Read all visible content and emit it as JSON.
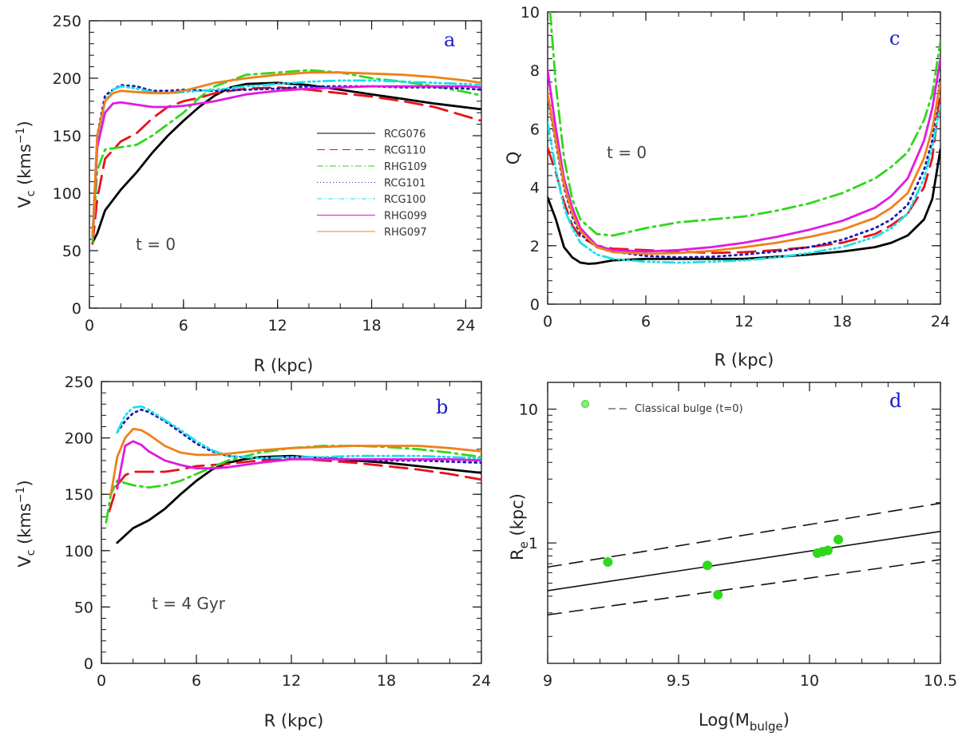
{
  "colors": {
    "RCG076": "#000000",
    "RCG110": "#e8111a",
    "RHG109": "#2ed81a",
    "RCG101": "#1a1ab0",
    "RCG100": "#18e0e8",
    "RHG099": "#e01ae0",
    "RHG097": "#f0801a"
  },
  "chart_data": [
    {
      "id": "a",
      "type": "line",
      "panel_label": "a",
      "annotation": "t = 0",
      "xlabel": "R (kpc)",
      "ylabel": "V_c (kms^-1)",
      "ylabel_main": "V",
      "ylabel_sub": "c",
      "ylabel_rest": " (kms",
      "ylabel_sup": "−1",
      "ylabel_end": ")",
      "xlim": [
        0,
        25
      ],
      "ylim": [
        0,
        250
      ],
      "xticks": [
        0,
        6,
        12,
        18,
        24
      ],
      "yticks": [
        0,
        50,
        100,
        150,
        200,
        250
      ],
      "legend": [
        "RCG076",
        "RCG110",
        "RHG109",
        "RCG101",
        "RCG100",
        "RHG099",
        "RHG097"
      ],
      "series": [
        {
          "name": "RCG076",
          "x": [
            0.2,
            0.5,
            1,
            2,
            3,
            4,
            5,
            6,
            7,
            8,
            9,
            10,
            12,
            14,
            16,
            18,
            20,
            22,
            25
          ],
          "y": [
            57,
            65,
            85,
            103,
            118,
            135,
            150,
            163,
            175,
            185,
            192,
            195,
            196,
            194,
            190,
            186,
            182,
            178,
            173
          ]
        },
        {
          "name": "RCG110",
          "x": [
            0.2,
            0.5,
            1,
            2,
            3,
            4,
            5,
            6,
            7,
            8,
            10,
            12,
            14,
            16,
            18,
            20,
            22,
            25
          ],
          "y": [
            56,
            95,
            130,
            145,
            152,
            165,
            175,
            180,
            183,
            187,
            191,
            192,
            190,
            187,
            184,
            180,
            175,
            163
          ]
        },
        {
          "name": "RHG109",
          "x": [
            0.2,
            0.5,
            1,
            2,
            3,
            4,
            5,
            6,
            7,
            8,
            10,
            12,
            14,
            16,
            18,
            20,
            22,
            24,
            25
          ],
          "y": [
            58,
            120,
            138,
            140,
            142,
            150,
            160,
            170,
            183,
            193,
            203,
            205,
            207,
            205,
            200,
            197,
            193,
            188,
            185
          ]
        },
        {
          "name": "RCG101",
          "x": [
            0.2,
            0.5,
            1,
            1.5,
            2,
            3,
            4,
            5,
            6,
            8,
            10,
            12,
            14,
            16,
            18,
            20,
            22,
            24,
            25
          ],
          "y": [
            62,
            150,
            185,
            190,
            194,
            193,
            189,
            189,
            190,
            189,
            190,
            191,
            193,
            193,
            193,
            192,
            192,
            191,
            190
          ]
        },
        {
          "name": "RCG100",
          "x": [
            0.2,
            0.5,
            1,
            1.5,
            2,
            3,
            4,
            5,
            6,
            8,
            10,
            12,
            14,
            16,
            18,
            20,
            22,
            24,
            25
          ],
          "y": [
            61,
            145,
            180,
            190,
            193,
            191,
            188,
            187,
            188,
            190,
            193,
            195,
            197,
            198,
            198,
            197,
            196,
            195,
            194
          ]
        },
        {
          "name": "RHG099",
          "x": [
            0.2,
            0.5,
            1,
            1.5,
            2,
            3,
            4,
            5,
            6,
            8,
            10,
            12,
            14,
            16,
            18,
            20,
            22,
            24,
            25
          ],
          "y": [
            62,
            140,
            170,
            178,
            179,
            177,
            175,
            175,
            176,
            180,
            186,
            189,
            191,
            192,
            193,
            193,
            193,
            193,
            192
          ]
        },
        {
          "name": "RHG097",
          "x": [
            0.2,
            0.5,
            1,
            1.5,
            2,
            3,
            4,
            5,
            6,
            8,
            10,
            12,
            14,
            16,
            18,
            20,
            22,
            24,
            25
          ],
          "y": [
            62,
            150,
            180,
            187,
            189,
            188,
            187,
            187,
            189,
            196,
            200,
            203,
            205,
            205,
            204,
            203,
            201,
            198,
            196
          ]
        }
      ]
    },
    {
      "id": "b",
      "type": "line",
      "panel_label": "b",
      "annotation": "t = 4 Gyr",
      "xlabel": "R (kpc)",
      "ylabel": "V_c (kms^-1)",
      "ylabel_main": "V",
      "ylabel_sub": "c",
      "ylabel_rest": " (kms",
      "ylabel_sup": "−1",
      "ylabel_end": ")",
      "xlim": [
        0,
        24
      ],
      "ylim": [
        0,
        250
      ],
      "xticks": [
        0,
        6,
        12,
        18,
        24
      ],
      "yticks": [
        0,
        50,
        100,
        150,
        200,
        250
      ],
      "series": [
        {
          "name": "RCG076",
          "x": [
            1,
            2,
            3,
            4,
            5,
            6,
            7,
            8,
            9,
            10,
            12,
            14,
            16,
            18,
            20,
            22,
            24
          ],
          "y": [
            107,
            120,
            127,
            137,
            150,
            162,
            172,
            178,
            181,
            183,
            184,
            182,
            180,
            178,
            175,
            172,
            169
          ]
        },
        {
          "name": "RCG110",
          "x": [
            0.5,
            1,
            1.5,
            2,
            3,
            4,
            5,
            6,
            7,
            8,
            10,
            12,
            14,
            16,
            18,
            20,
            22,
            24
          ],
          "y": [
            135,
            158,
            167,
            170,
            170,
            170,
            172,
            175,
            176,
            177,
            180,
            182,
            180,
            178,
            175,
            172,
            168,
            163
          ]
        },
        {
          "name": "RHG109",
          "x": [
            0.3,
            0.6,
            1,
            1.5,
            2,
            3,
            4,
            5,
            6,
            7,
            8,
            10,
            12,
            14,
            16,
            18,
            20,
            22,
            24
          ],
          "y": [
            125,
            150,
            162,
            160,
            158,
            156,
            158,
            162,
            168,
            174,
            180,
            187,
            191,
            193,
            193,
            192,
            190,
            187,
            183
          ]
        },
        {
          "name": "RCG101",
          "x": [
            1,
            1.5,
            2,
            2.5,
            3,
            4,
            5,
            6,
            7,
            8,
            10,
            12,
            14,
            16,
            18,
            20,
            22,
            24
          ],
          "y": [
            205,
            215,
            222,
            225,
            223,
            215,
            205,
            195,
            188,
            184,
            182,
            183,
            182,
            181,
            180,
            180,
            179,
            178
          ]
        },
        {
          "name": "RCG100",
          "x": [
            1,
            1.5,
            2,
            2.5,
            3,
            4,
            5,
            6,
            7,
            8,
            10,
            12,
            14,
            16,
            18,
            20,
            22,
            24
          ],
          "y": [
            205,
            220,
            227,
            228,
            225,
            216,
            207,
            197,
            189,
            184,
            182,
            183,
            183,
            184,
            184,
            184,
            183,
            182
          ]
        },
        {
          "name": "RHG099",
          "x": [
            1,
            1.5,
            2,
            2.5,
            3,
            4,
            5,
            6,
            7,
            8,
            10,
            12,
            14,
            16,
            18,
            20,
            22,
            24
          ],
          "y": [
            155,
            193,
            197,
            194,
            188,
            180,
            176,
            173,
            173,
            174,
            178,
            181,
            181,
            181,
            181,
            181,
            181,
            180
          ]
        },
        {
          "name": "RHG097",
          "x": [
            0.6,
            1,
            1.5,
            2,
            2.5,
            3,
            4,
            5,
            6,
            7,
            8,
            10,
            12,
            14,
            16,
            18,
            20,
            22,
            24
          ],
          "y": [
            150,
            183,
            200,
            208,
            207,
            203,
            193,
            187,
            185,
            185,
            186,
            189,
            191,
            192,
            193,
            193,
            193,
            191,
            188
          ]
        }
      ]
    },
    {
      "id": "c",
      "type": "line",
      "panel_label": "c",
      "annotation": "t = 0",
      "xlabel": "R (kpc)",
      "ylabel": "Q",
      "xlim": [
        0,
        24
      ],
      "ylim": [
        0,
        10
      ],
      "xticks": [
        0,
        6,
        12,
        18,
        24
      ],
      "yticks": [
        0,
        2,
        4,
        6,
        8,
        10
      ],
      "series": [
        {
          "name": "RCG076",
          "x": [
            0,
            0.5,
            1,
            1.5,
            2,
            2.5,
            3,
            4,
            6,
            8,
            10,
            12,
            14,
            16,
            18,
            20,
            21,
            22,
            23,
            23.5,
            24
          ],
          "y": [
            3.65,
            2.9,
            1.95,
            1.6,
            1.42,
            1.38,
            1.4,
            1.5,
            1.55,
            1.55,
            1.55,
            1.55,
            1.62,
            1.7,
            1.8,
            1.95,
            2.1,
            2.35,
            2.9,
            3.6,
            5.3
          ]
        },
        {
          "name": "RCG110",
          "x": [
            0,
            0.5,
            1,
            1.5,
            2,
            3,
            4,
            6,
            8,
            10,
            12,
            14,
            16,
            18,
            20,
            21,
            22,
            23,
            23.5,
            24
          ],
          "y": [
            5.35,
            4.5,
            3.5,
            2.7,
            2.3,
            2.0,
            1.9,
            1.85,
            1.8,
            1.75,
            1.78,
            1.85,
            1.95,
            2.1,
            2.4,
            2.7,
            3.1,
            4.0,
            5.0,
            7.2
          ]
        },
        {
          "name": "RHG109",
          "x": [
            0.15,
            0.5,
            1,
            1.5,
            2,
            3,
            4,
            6,
            8,
            10,
            12,
            14,
            16,
            18,
            20,
            21,
            22,
            23,
            23.5,
            24
          ],
          "y": [
            10,
            7.5,
            5.0,
            3.6,
            2.9,
            2.4,
            2.35,
            2.6,
            2.8,
            2.9,
            3.0,
            3.2,
            3.45,
            3.8,
            4.3,
            4.7,
            5.2,
            6.3,
            7.2,
            9.0
          ]
        },
        {
          "name": "RCG101",
          "x": [
            0,
            0.5,
            1,
            1.5,
            2,
            3,
            4,
            6,
            8,
            10,
            12,
            14,
            16,
            18,
            20,
            21,
            22,
            23,
            23.5,
            24
          ],
          "y": [
            7.1,
            5.5,
            4.0,
            3.0,
            2.4,
            1.95,
            1.8,
            1.65,
            1.6,
            1.62,
            1.7,
            1.8,
            1.95,
            2.2,
            2.6,
            2.9,
            3.4,
            4.6,
            5.6,
            7.8
          ]
        },
        {
          "name": "RCG100",
          "x": [
            0,
            0.5,
            1,
            1.5,
            2,
            3,
            4,
            6,
            8,
            10,
            12,
            14,
            16,
            18,
            20,
            21,
            22,
            23,
            23.5,
            24
          ],
          "y": [
            6.2,
            4.6,
            3.3,
            2.6,
            2.1,
            1.7,
            1.55,
            1.45,
            1.42,
            1.45,
            1.5,
            1.6,
            1.75,
            1.95,
            2.3,
            2.6,
            3.1,
            4.3,
            5.4,
            6.8
          ]
        },
        {
          "name": "RHG099",
          "x": [
            0,
            0.5,
            1,
            1.5,
            2,
            3,
            4,
            6,
            8,
            10,
            12,
            14,
            16,
            18,
            20,
            21,
            22,
            23,
            23.5,
            24
          ],
          "y": [
            8.0,
            6.0,
            4.3,
            3.3,
            2.6,
            2.0,
            1.85,
            1.8,
            1.85,
            1.95,
            2.1,
            2.3,
            2.55,
            2.85,
            3.3,
            3.7,
            4.3,
            5.6,
            6.7,
            8.4
          ]
        },
        {
          "name": "RHG097",
          "x": [
            0,
            0.5,
            1,
            1.5,
            2,
            3,
            4,
            6,
            8,
            10,
            12,
            14,
            16,
            18,
            20,
            21,
            22,
            23,
            23.5,
            24
          ],
          "y": [
            7.2,
            5.6,
            4.1,
            3.1,
            2.5,
            1.95,
            1.78,
            1.72,
            1.75,
            1.82,
            1.95,
            2.1,
            2.3,
            2.55,
            2.95,
            3.3,
            3.8,
            5.0,
            6.0,
            7.6
          ]
        }
      ]
    },
    {
      "id": "d",
      "type": "scatter",
      "panel_label": "d",
      "xlabel": "Log(M_bulge)",
      "xlabel_main": "Log(M",
      "xlabel_sub": "bulge",
      "xlabel_end": ")",
      "ylabel": "R_e (kpc)",
      "ylabel_main": "R",
      "ylabel_sub": "e",
      "ylabel_rest": " (kpc)",
      "xlim": [
        9,
        10.5
      ],
      "ylim_log10": [
        -0.9,
        1.2
      ],
      "xticks": [
        "9",
        "9.5",
        "10",
        "10.5"
      ],
      "xtick_values": [
        9,
        9.5,
        10,
        10.5
      ],
      "yticks": [
        "1",
        "10"
      ],
      "ytick_values": [
        1,
        10
      ],
      "legend": [
        "Classical bulge (t=0)"
      ],
      "points": {
        "x": [
          9.23,
          9.61,
          9.65,
          10.03,
          10.05,
          10.07,
          10.11
        ],
        "y": [
          0.72,
          0.68,
          0.41,
          0.84,
          0.86,
          0.88,
          1.06
        ]
      },
      "fit_lines": [
        {
          "name": "fit",
          "style": "solid",
          "x": [
            9,
            10.5
          ],
          "y": [
            0.44,
            1.22
          ]
        },
        {
          "name": "upper",
          "style": "dashed",
          "x": [
            9,
            10.5
          ],
          "y": [
            0.66,
            1.98
          ]
        },
        {
          "name": "lower",
          "style": "dashed",
          "x": [
            9,
            10.5
          ],
          "y": [
            0.29,
            0.75
          ]
        }
      ]
    }
  ]
}
